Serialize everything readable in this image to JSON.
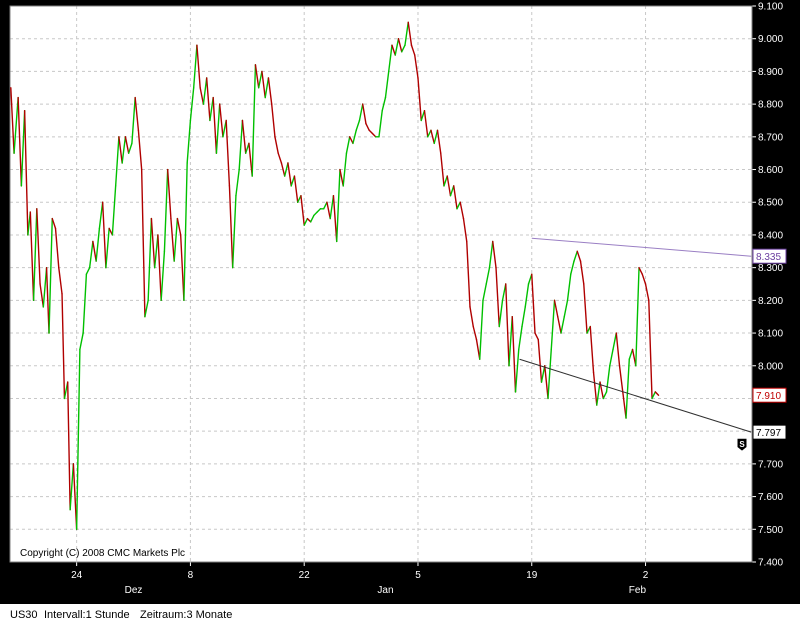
{
  "chart_data": {
    "type": "line",
    "copyright": "Copyright (C) 2008 CMC Markets Plc",
    "ylim": [
      7.4,
      9.1
    ],
    "y_ticks": [
      "7.400",
      "7.500",
      "7.600",
      "7.700",
      "7.800",
      "7.900",
      "8.000",
      "8.100",
      "8.200",
      "8.300",
      "8.400",
      "8.500",
      "8.600",
      "8.700",
      "8.800",
      "8.900",
      "9.000",
      "9.100"
    ],
    "x_ticks": [
      {
        "label": "24",
        "day": 24
      },
      {
        "label": "8",
        "day": 38
      },
      {
        "label": "22",
        "day": 52
      },
      {
        "label": "5",
        "day": 66
      },
      {
        "label": "19",
        "day": 80
      },
      {
        "label": "2",
        "day": 94
      }
    ],
    "month_labels": [
      {
        "label": "Dez",
        "day": 31
      },
      {
        "label": "Jan",
        "day": 62
      },
      {
        "label": "Feb",
        "day": 93
      }
    ],
    "xlim": [
      15.8,
      107.1
    ],
    "series": [
      {
        "values": [
          [
            15.9,
            8.85
          ],
          [
            16.3,
            8.65
          ],
          [
            16.8,
            8.82
          ],
          [
            17.2,
            8.55
          ],
          [
            17.6,
            8.78
          ],
          [
            18.0,
            8.4
          ],
          [
            18.3,
            8.47
          ],
          [
            18.7,
            8.2
          ],
          [
            19.1,
            8.48
          ],
          [
            19.5,
            8.25
          ],
          [
            19.9,
            8.18
          ],
          [
            20.3,
            8.3
          ],
          [
            20.6,
            8.1
          ],
          [
            21.0,
            8.45
          ],
          [
            21.4,
            8.42
          ],
          [
            21.8,
            8.3
          ],
          [
            22.2,
            8.22
          ],
          [
            22.5,
            7.9
          ],
          [
            22.9,
            7.95
          ],
          [
            23.2,
            7.56
          ],
          [
            23.6,
            7.7
          ],
          [
            24.0,
            7.5
          ],
          [
            24.4,
            8.05
          ],
          [
            24.8,
            8.1
          ],
          [
            25.2,
            8.28
          ],
          [
            25.6,
            8.3
          ],
          [
            26.0,
            8.38
          ],
          [
            26.4,
            8.32
          ],
          [
            26.8,
            8.42
          ],
          [
            27.2,
            8.5
          ],
          [
            27.6,
            8.3
          ],
          [
            28.0,
            8.42
          ],
          [
            28.4,
            8.4
          ],
          [
            28.8,
            8.55
          ],
          [
            29.2,
            8.7
          ],
          [
            29.6,
            8.62
          ],
          [
            30.0,
            8.7
          ],
          [
            30.4,
            8.65
          ],
          [
            30.8,
            8.68
          ],
          [
            31.2,
            8.82
          ],
          [
            31.6,
            8.72
          ],
          [
            32.0,
            8.6
          ],
          [
            32.4,
            8.15
          ],
          [
            32.8,
            8.2
          ],
          [
            33.2,
            8.45
          ],
          [
            33.6,
            8.3
          ],
          [
            34.0,
            8.4
          ],
          [
            34.4,
            8.2
          ],
          [
            34.8,
            8.35
          ],
          [
            35.2,
            8.6
          ],
          [
            35.6,
            8.45
          ],
          [
            36.0,
            8.32
          ],
          [
            36.4,
            8.45
          ],
          [
            36.8,
            8.4
          ],
          [
            37.2,
            8.2
          ],
          [
            37.6,
            8.62
          ],
          [
            38.0,
            8.75
          ],
          [
            38.4,
            8.85
          ],
          [
            38.8,
            8.98
          ],
          [
            39.2,
            8.85
          ],
          [
            39.6,
            8.8
          ],
          [
            40.0,
            8.88
          ],
          [
            40.4,
            8.75
          ],
          [
            40.8,
            8.82
          ],
          [
            41.2,
            8.65
          ],
          [
            41.6,
            8.8
          ],
          [
            42.0,
            8.7
          ],
          [
            42.4,
            8.75
          ],
          [
            42.8,
            8.55
          ],
          [
            43.2,
            8.3
          ],
          [
            43.6,
            8.52
          ],
          [
            44.0,
            8.6
          ],
          [
            44.4,
            8.75
          ],
          [
            44.8,
            8.65
          ],
          [
            45.2,
            8.68
          ],
          [
            45.6,
            8.58
          ],
          [
            46.0,
            8.92
          ],
          [
            46.4,
            8.85
          ],
          [
            46.8,
            8.9
          ],
          [
            47.2,
            8.82
          ],
          [
            47.6,
            8.88
          ],
          [
            48.0,
            8.8
          ],
          [
            48.4,
            8.7
          ],
          [
            48.8,
            8.65
          ],
          [
            49.2,
            8.62
          ],
          [
            49.6,
            8.58
          ],
          [
            50.0,
            8.62
          ],
          [
            50.4,
            8.55
          ],
          [
            50.8,
            8.58
          ],
          [
            51.2,
            8.5
          ],
          [
            51.6,
            8.52
          ],
          [
            52.0,
            8.43
          ],
          [
            52.4,
            8.45
          ],
          [
            52.8,
            8.44
          ],
          [
            53.2,
            8.46
          ],
          [
            53.6,
            8.47
          ],
          [
            54.0,
            8.48
          ],
          [
            54.4,
            8.48
          ],
          [
            54.8,
            8.5
          ],
          [
            55.2,
            8.45
          ],
          [
            55.6,
            8.52
          ],
          [
            56.0,
            8.38
          ],
          [
            56.4,
            8.6
          ],
          [
            56.8,
            8.55
          ],
          [
            57.2,
            8.65
          ],
          [
            57.6,
            8.7
          ],
          [
            58.0,
            8.68
          ],
          [
            58.4,
            8.72
          ],
          [
            58.8,
            8.75
          ],
          [
            59.2,
            8.8
          ],
          [
            59.6,
            8.74
          ],
          [
            60.0,
            8.72
          ],
          [
            60.4,
            8.71
          ],
          [
            60.8,
            8.7
          ],
          [
            61.2,
            8.7
          ],
          [
            61.6,
            8.78
          ],
          [
            62.0,
            8.82
          ],
          [
            62.4,
            8.9
          ],
          [
            62.8,
            8.98
          ],
          [
            63.2,
            8.95
          ],
          [
            63.6,
            9.0
          ],
          [
            64.0,
            8.96
          ],
          [
            64.4,
            8.98
          ],
          [
            64.8,
            9.05
          ],
          [
            65.2,
            8.98
          ],
          [
            65.6,
            8.95
          ],
          [
            66.0,
            8.88
          ],
          [
            66.4,
            8.75
          ],
          [
            66.8,
            8.78
          ],
          [
            67.2,
            8.7
          ],
          [
            67.6,
            8.72
          ],
          [
            68.0,
            8.68
          ],
          [
            68.4,
            8.72
          ],
          [
            68.8,
            8.65
          ],
          [
            69.2,
            8.55
          ],
          [
            69.6,
            8.58
          ],
          [
            70.0,
            8.52
          ],
          [
            70.4,
            8.55
          ],
          [
            70.8,
            8.48
          ],
          [
            71.2,
            8.5
          ],
          [
            71.6,
            8.45
          ],
          [
            72.0,
            8.38
          ],
          [
            72.4,
            8.18
          ],
          [
            72.8,
            8.12
          ],
          [
            73.2,
            8.08
          ],
          [
            73.6,
            8.02
          ],
          [
            74.0,
            8.2
          ],
          [
            74.4,
            8.25
          ],
          [
            74.8,
            8.3
          ],
          [
            75.2,
            8.38
          ],
          [
            75.6,
            8.3
          ],
          [
            76.0,
            8.12
          ],
          [
            76.4,
            8.2
          ],
          [
            76.8,
            8.25
          ],
          [
            77.2,
            8.0
          ],
          [
            77.6,
            8.15
          ],
          [
            78.0,
            7.92
          ],
          [
            78.4,
            8.05
          ],
          [
            78.8,
            8.12
          ],
          [
            79.2,
            8.18
          ],
          [
            79.6,
            8.25
          ],
          [
            80.0,
            8.28
          ],
          [
            80.4,
            8.1
          ],
          [
            80.8,
            8.08
          ],
          [
            81.2,
            7.95
          ],
          [
            81.6,
            8.0
          ],
          [
            82.0,
            7.9
          ],
          [
            82.4,
            8.05
          ],
          [
            82.8,
            8.2
          ],
          [
            83.2,
            8.15
          ],
          [
            83.6,
            8.1
          ],
          [
            84.0,
            8.15
          ],
          [
            84.4,
            8.2
          ],
          [
            84.8,
            8.28
          ],
          [
            85.2,
            8.32
          ],
          [
            85.6,
            8.35
          ],
          [
            86.0,
            8.32
          ],
          [
            86.4,
            8.25
          ],
          [
            86.8,
            8.1
          ],
          [
            87.2,
            8.12
          ],
          [
            87.6,
            7.98
          ],
          [
            88.0,
            7.88
          ],
          [
            88.4,
            7.95
          ],
          [
            88.8,
            7.9
          ],
          [
            89.2,
            7.92
          ],
          [
            89.6,
            8.0
          ],
          [
            90.0,
            8.05
          ],
          [
            90.4,
            8.1
          ],
          [
            90.8,
            8.0
          ],
          [
            91.2,
            7.92
          ],
          [
            91.6,
            7.84
          ],
          [
            92.0,
            8.02
          ],
          [
            92.4,
            8.05
          ],
          [
            92.8,
            8.0
          ],
          [
            93.2,
            8.3
          ],
          [
            93.6,
            8.28
          ],
          [
            94.0,
            8.25
          ],
          [
            94.4,
            8.2
          ],
          [
            94.8,
            7.9
          ],
          [
            95.2,
            7.92
          ],
          [
            95.6,
            7.91
          ]
        ]
      }
    ],
    "trendlines": [
      {
        "name": "upper",
        "from": [
          80.0,
          8.39
        ],
        "to": [
          107.0,
          8.335
        ]
      },
      {
        "name": "lower",
        "from": [
          78.5,
          8.02
        ],
        "to": [
          107.0,
          7.797
        ]
      }
    ],
    "price_flags": [
      {
        "name": "upper-trendline",
        "label": "8.335",
        "value": 8.335,
        "color": "#6b3fa0"
      },
      {
        "name": "last-price",
        "label": "7.910",
        "value": 7.91,
        "color": "#c00000"
      },
      {
        "name": "lower-trendline",
        "label": "7.797",
        "value": 7.797,
        "color": "#000000"
      }
    ],
    "marker": {
      "label": "S",
      "value": 7.76
    },
    "colors": {
      "up": "#00c000",
      "down": "#b00000",
      "plot_bg": "#ffffff",
      "frame_bg": "#000000",
      "grid": "#c8c8c8",
      "trend_upper": "#9a7fc4",
      "trend_lower": "#303030"
    }
  },
  "status_bar": {
    "symbol": "US30",
    "interval": "Intervall:1 Stunde",
    "period": "Zeitraum:3 Monate"
  }
}
